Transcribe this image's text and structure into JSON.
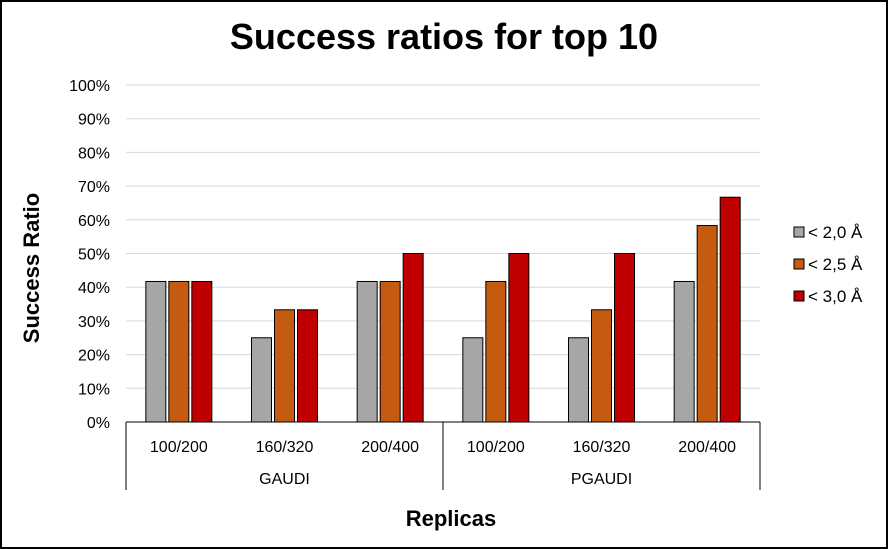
{
  "chart_data": {
    "type": "bar",
    "title": "Success ratios for top 10",
    "xlabel": "Replicas",
    "ylabel": "Success Ratio",
    "ylim": [
      0,
      100
    ],
    "y_ticks": [
      "0%",
      "10%",
      "20%",
      "30%",
      "40%",
      "50%",
      "60%",
      "70%",
      "80%",
      "90%",
      "100%"
    ],
    "categories": [
      "100/200",
      "160/320",
      "200/400",
      "100/200",
      "160/320",
      "200/400"
    ],
    "groups": [
      {
        "name": "GAUDI",
        "categories": [
          "100/200",
          "160/320",
          "200/400"
        ]
      },
      {
        "name": "PGAUDI",
        "categories": [
          "100/200",
          "160/320",
          "200/400"
        ]
      }
    ],
    "series": [
      {
        "name": "< 2,0 Å",
        "color": "#a6a6a6",
        "values": [
          41.7,
          25.0,
          41.7,
          25.0,
          25.0,
          41.7
        ]
      },
      {
        "name": "< 2,5 Å",
        "color": "#c55a11",
        "values": [
          41.7,
          33.3,
          41.7,
          41.7,
          33.3,
          58.3
        ]
      },
      {
        "name": "< 3,0 Å",
        "color": "#c00000",
        "values": [
          41.7,
          33.3,
          50.0,
          50.0,
          50.0,
          66.7
        ]
      }
    ],
    "grid": true,
    "legend_position": "right"
  }
}
